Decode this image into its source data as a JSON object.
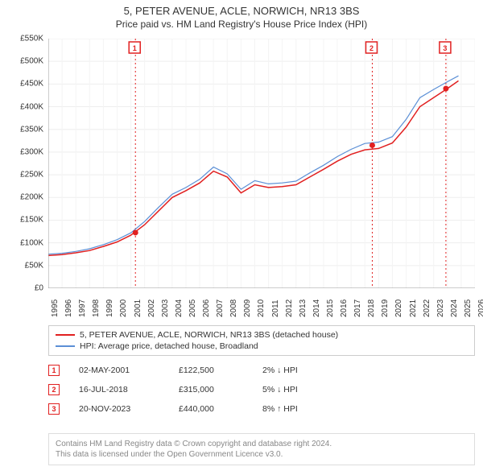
{
  "title": "5, PETER AVENUE, ACLE, NORWICH, NR13 3BS",
  "subtitle": "Price paid vs. HM Land Registry's House Price Index (HPI)",
  "chart": {
    "type": "line",
    "background_color": "#ffffff",
    "x": {
      "min": 1995,
      "max": 2026,
      "ticks": [
        1995,
        1996,
        1997,
        1998,
        1999,
        2000,
        2001,
        2002,
        2003,
        2004,
        2005,
        2006,
        2007,
        2008,
        2009,
        2010,
        2011,
        2012,
        2013,
        2014,
        2015,
        2016,
        2017,
        2018,
        2019,
        2020,
        2021,
        2022,
        2023,
        2024,
        2025,
        2026
      ]
    },
    "y": {
      "min": 0,
      "max": 550000,
      "step": 50000,
      "labels": [
        "£0",
        "£50K",
        "£100K",
        "£150K",
        "£200K",
        "£250K",
        "£300K",
        "£350K",
        "£400K",
        "£450K",
        "£500K",
        "£550K"
      ]
    },
    "series": [
      {
        "name": "property",
        "color": "#e12020",
        "width": 1.5,
        "points": [
          [
            1995,
            72000
          ],
          [
            1996,
            74000
          ],
          [
            1997,
            78000
          ],
          [
            1998,
            83000
          ],
          [
            1999,
            92000
          ],
          [
            2000,
            102000
          ],
          [
            2001,
            117000
          ],
          [
            2002,
            140000
          ],
          [
            2003,
            170000
          ],
          [
            2004,
            200000
          ],
          [
            2005,
            215000
          ],
          [
            2006,
            232000
          ],
          [
            2007,
            258000
          ],
          [
            2008,
            245000
          ],
          [
            2009,
            210000
          ],
          [
            2010,
            228000
          ],
          [
            2011,
            222000
          ],
          [
            2012,
            224000
          ],
          [
            2013,
            228000
          ],
          [
            2014,
            245000
          ],
          [
            2015,
            262000
          ],
          [
            2016,
            280000
          ],
          [
            2017,
            295000
          ],
          [
            2018,
            305000
          ],
          [
            2019,
            308000
          ],
          [
            2020,
            320000
          ],
          [
            2021,
            355000
          ],
          [
            2022,
            400000
          ],
          [
            2023,
            420000
          ],
          [
            2024,
            440000
          ],
          [
            2024.8,
            457000
          ]
        ]
      },
      {
        "name": "hpi",
        "color": "#5b8fd6",
        "width": 1.2,
        "points": [
          [
            1995,
            75000
          ],
          [
            1996,
            77000
          ],
          [
            1997,
            81000
          ],
          [
            1998,
            87000
          ],
          [
            1999,
            96000
          ],
          [
            2000,
            107000
          ],
          [
            2001,
            122000
          ],
          [
            2002,
            147000
          ],
          [
            2003,
            178000
          ],
          [
            2004,
            207000
          ],
          [
            2005,
            222000
          ],
          [
            2006,
            240000
          ],
          [
            2007,
            267000
          ],
          [
            2008,
            252000
          ],
          [
            2009,
            218000
          ],
          [
            2010,
            237000
          ],
          [
            2011,
            230000
          ],
          [
            2012,
            232000
          ],
          [
            2013,
            236000
          ],
          [
            2014,
            254000
          ],
          [
            2015,
            271000
          ],
          [
            2016,
            290000
          ],
          [
            2017,
            306000
          ],
          [
            2018,
            319000
          ],
          [
            2019,
            322000
          ],
          [
            2020,
            334000
          ],
          [
            2021,
            372000
          ],
          [
            2022,
            420000
          ],
          [
            2023,
            438000
          ],
          [
            2024,
            455000
          ],
          [
            2024.8,
            468000
          ]
        ]
      }
    ],
    "sale_markers": [
      {
        "n": "1",
        "x": 2001.33,
        "y": 122500,
        "color": "#e12020"
      },
      {
        "n": "2",
        "x": 2018.54,
        "y": 315000,
        "color": "#e12020"
      },
      {
        "n": "3",
        "x": 2023.89,
        "y": 440000,
        "color": "#e12020"
      }
    ],
    "vline_color": "#e12020",
    "vline_dash": "2,3"
  },
  "legend": {
    "items": [
      {
        "color": "#e12020",
        "label": "5, PETER AVENUE, ACLE, NORWICH, NR13 3BS (detached house)"
      },
      {
        "color": "#5b8fd6",
        "label": "HPI: Average price, detached house, Broadland"
      }
    ]
  },
  "sales": [
    {
      "n": "1",
      "color": "#e12020",
      "date": "02-MAY-2001",
      "price": "£122,500",
      "diff": "2% ↓ HPI"
    },
    {
      "n": "2",
      "color": "#e12020",
      "date": "16-JUL-2018",
      "price": "£315,000",
      "diff": "5% ↓ HPI"
    },
    {
      "n": "3",
      "color": "#e12020",
      "date": "20-NOV-2023",
      "price": "£440,000",
      "diff": "8% ↑ HPI"
    }
  ],
  "footer": {
    "line1": "Contains HM Land Registry data © Crown copyright and database right 2024.",
    "line2": "This data is licensed under the Open Government Licence v3.0."
  }
}
